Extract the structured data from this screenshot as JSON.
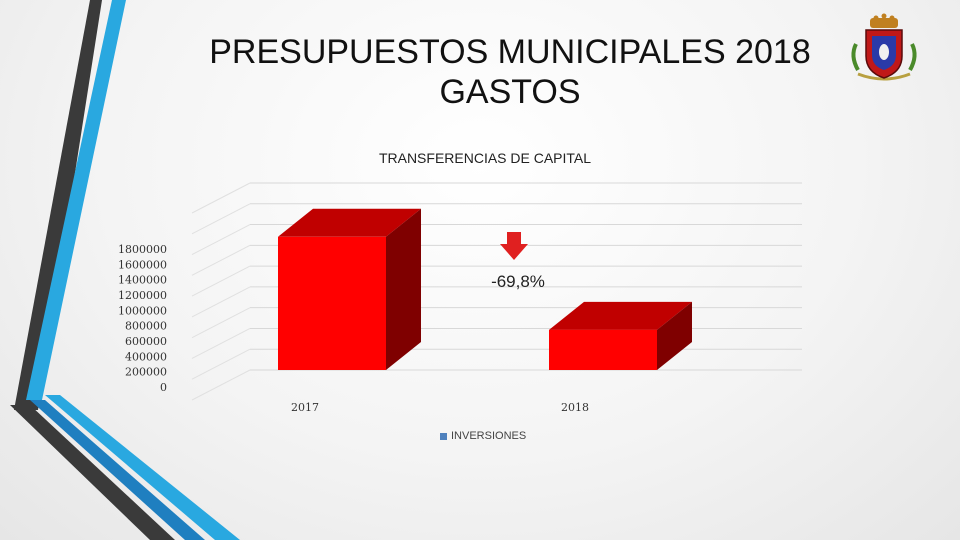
{
  "slide": {
    "title_line1": "PRESUPUESTOS MUNICIPALES 2018",
    "title_line2": "GASTOS"
  },
  "colors": {
    "bar_front": "#ff0000",
    "bar_top": "#c00000",
    "bar_side": "#7f0000",
    "arrow": "#e02020",
    "legend_swatch": "#4f81bd",
    "deco_dark": "#3a3a3a",
    "deco_light_blue": "#29a8e0",
    "deco_blue": "#1f7fc0"
  },
  "crest_icon": "municipal-coat-of-arms",
  "chart_data": {
    "type": "bar",
    "title": "TRANSFERENCIAS DE CAPITAL",
    "categories": [
      "2017",
      "2018"
    ],
    "series": [
      {
        "name": "INVERSIONES",
        "values": [
          1750000,
          528000
        ]
      }
    ],
    "yticks": [
      "1800000",
      "1600000",
      "1400000",
      "1200000",
      "1000000",
      "800000",
      "600000",
      "400000",
      "200000",
      "0"
    ],
    "ylim": [
      0,
      1800000
    ],
    "grid": true,
    "legend": "bottom",
    "annotation": {
      "text": "-69,8%",
      "icon": "down-arrow-icon"
    }
  }
}
